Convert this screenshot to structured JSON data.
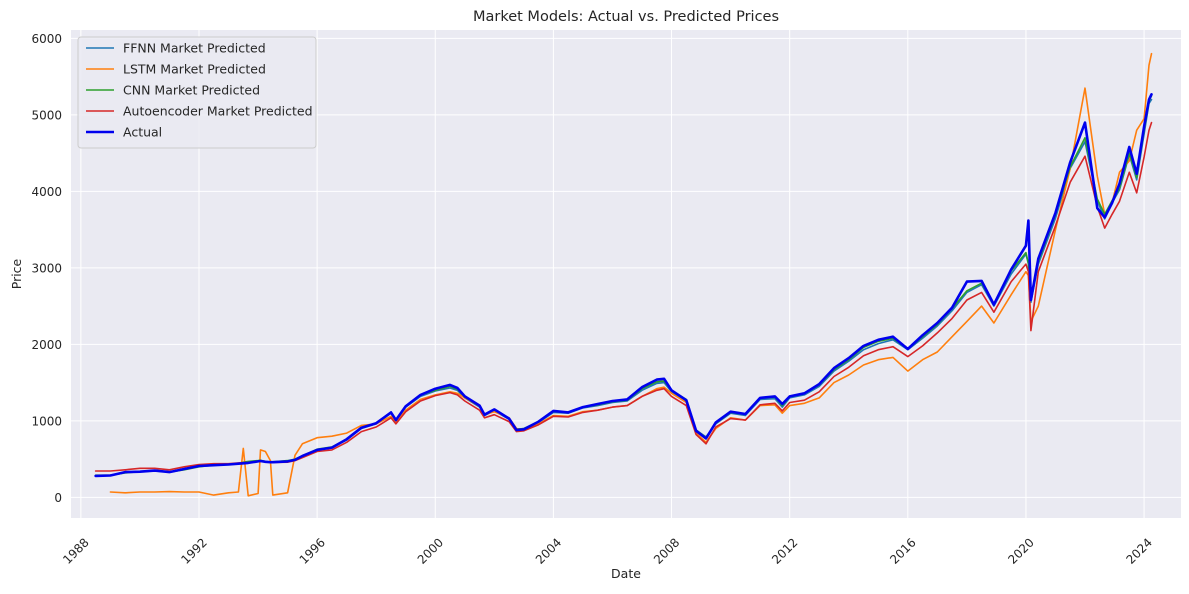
{
  "chart_data": {
    "type": "line",
    "title": "Market Models: Actual vs. Predicted Prices",
    "xlabel": "Date",
    "ylabel": "Price",
    "xlim": [
      "1987-09",
      "2025-04"
    ],
    "ylim": [
      -270,
      6110
    ],
    "x_ticks": [
      "1988",
      "1992",
      "1996",
      "2000",
      "2004",
      "2008",
      "2012",
      "2016",
      "2020",
      "2024"
    ],
    "y_ticks": [
      0,
      1000,
      2000,
      3000,
      4000,
      5000,
      6000
    ],
    "grid": true,
    "legend_position": "top-left",
    "x": [
      "1988-07",
      "1989-01",
      "1989-07",
      "1990-01",
      "1990-07",
      "1991-01",
      "1991-07",
      "1992-01",
      "1992-07",
      "1993-01",
      "1993-05",
      "1993-07",
      "1993-09",
      "1994-01",
      "1994-02",
      "1994-04",
      "1994-06",
      "1994-07",
      "1995-01",
      "1995-04",
      "1995-07",
      "1996-01",
      "1996-07",
      "1997-01",
      "1997-07",
      "1998-01",
      "1998-07",
      "1998-09",
      "1999-01",
      "1999-07",
      "2000-01",
      "2000-07",
      "2000-10",
      "2001-01",
      "2001-07",
      "2001-09",
      "2002-01",
      "2002-07",
      "2002-10",
      "2003-01",
      "2003-07",
      "2004-01",
      "2004-07",
      "2005-01",
      "2005-07",
      "2006-01",
      "2006-07",
      "2007-01",
      "2007-07",
      "2007-10",
      "2008-01",
      "2008-07",
      "2008-11",
      "2009-03",
      "2009-07",
      "2010-01",
      "2010-07",
      "2011-01",
      "2011-07",
      "2011-10",
      "2012-01",
      "2012-07",
      "2013-01",
      "2013-07",
      "2014-01",
      "2014-07",
      "2015-01",
      "2015-07",
      "2016-01",
      "2016-07",
      "2017-01",
      "2017-07",
      "2018-01",
      "2018-07",
      "2018-12",
      "2019-07",
      "2020-01",
      "2020-02",
      "2020-03",
      "2020-06",
      "2021-01",
      "2021-07",
      "2022-01",
      "2022-06",
      "2022-09",
      "2022-12",
      "2023-03",
      "2023-07",
      "2023-10",
      "2024-01",
      "2024-03",
      "2024-04"
    ],
    "series": [
      {
        "name": "FFNN Market Predicted",
        "color": "#1f77b4",
        "width": 1.6,
        "values": [
          285,
          290,
          330,
          340,
          350,
          330,
          370,
          410,
          420,
          430,
          440,
          445,
          450,
          470,
          475,
          465,
          460,
          460,
          470,
          490,
          540,
          620,
          650,
          750,
          900,
          960,
          1100,
          1000,
          1180,
          1320,
          1390,
          1430,
          1400,
          1300,
          1180,
          1070,
          1130,
          1020,
          890,
          900,
          980,
          1110,
          1100,
          1170,
          1200,
          1240,
          1260,
          1400,
          1490,
          1500,
          1380,
          1260,
          880,
          790,
          960,
          1100,
          1070,
          1280,
          1290,
          1180,
          1300,
          1340,
          1450,
          1650,
          1780,
          1930,
          2010,
          2060,
          1930,
          2080,
          2240,
          2440,
          2680,
          2780,
          2500,
          2920,
          3180,
          3050,
          2550,
          3050,
          3650,
          4300,
          4650,
          3880,
          3640,
          3850,
          4020,
          4480,
          4150,
          4750,
          5150,
          5200
        ]
      },
      {
        "name": "LSTM Market Predicted",
        "color": "#ff7f0e",
        "width": 1.6,
        "values": [
          null,
          70,
          60,
          70,
          70,
          75,
          70,
          70,
          30,
          60,
          70,
          640,
          20,
          50,
          620,
          600,
          480,
          30,
          60,
          550,
          700,
          780,
          800,
          840,
          940,
          960,
          1060,
          980,
          1140,
          1280,
          1340,
          1380,
          1360,
          1300,
          1190,
          1080,
          1120,
          1040,
          900,
          880,
          960,
          1070,
          1060,
          1120,
          1140,
          1180,
          1200,
          1320,
          1420,
          1440,
          1360,
          1240,
          840,
          720,
          900,
          1040,
          1010,
          1200,
          1210,
          1100,
          1200,
          1230,
          1300,
          1500,
          1600,
          1730,
          1800,
          1830,
          1650,
          1800,
          1900,
          2100,
          2300,
          2500,
          2280,
          2650,
          2950,
          2900,
          2300,
          2500,
          3500,
          4300,
          5350,
          4200,
          3700,
          3850,
          4250,
          4400,
          4800,
          4950,
          5650,
          5800
        ]
      },
      {
        "name": "CNN Market Predicted",
        "color": "#2ca02c",
        "width": 1.6,
        "values": [
          290,
          290,
          320,
          335,
          345,
          330,
          360,
          400,
          420,
          430,
          440,
          460,
          470,
          480,
          485,
          470,
          460,
          465,
          480,
          500,
          545,
          630,
          660,
          760,
          910,
          970,
          1110,
          1010,
          1190,
          1340,
          1400,
          1450,
          1410,
          1310,
          1190,
          1080,
          1150,
          1030,
          890,
          900,
          990,
          1130,
          1110,
          1180,
          1210,
          1250,
          1270,
          1420,
          1510,
          1520,
          1400,
          1280,
          880,
          780,
          970,
          1110,
          1090,
          1300,
          1310,
          1200,
          1320,
          1360,
          1470,
          1670,
          1800,
          1960,
          2040,
          2080,
          1940,
          2100,
          2260,
          2470,
          2700,
          2800,
          2520,
          2960,
          3200,
          3060,
          2580,
          3080,
          3700,
          4320,
          4700,
          3900,
          3700,
          3880,
          4040,
          4500,
          4180,
          4800,
          5180,
          5250
        ]
      },
      {
        "name": "Autoencoder Market Predicted",
        "color": "#d62728",
        "width": 1.6,
        "values": [
          345,
          345,
          360,
          380,
          380,
          360,
          400,
          430,
          440,
          440,
          450,
          455,
          455,
          470,
          470,
          465,
          460,
          455,
          460,
          480,
          520,
          600,
          620,
          720,
          860,
          920,
          1040,
          960,
          1120,
          1260,
          1330,
          1370,
          1340,
          1260,
          1140,
          1040,
          1080,
          990,
          860,
          870,
          950,
          1060,
          1050,
          1110,
          1140,
          1180,
          1200,
          1320,
          1400,
          1420,
          1320,
          1200,
          820,
          700,
          920,
          1030,
          1010,
          1210,
          1230,
          1130,
          1240,
          1270,
          1380,
          1580,
          1700,
          1850,
          1930,
          1970,
          1840,
          1980,
          2150,
          2340,
          2580,
          2680,
          2420,
          2820,
          3050,
          2950,
          2180,
          2950,
          3550,
          4120,
          4460,
          3800,
          3520,
          3700,
          3870,
          4250,
          3980,
          4450,
          4800,
          4900
        ]
      },
      {
        "name": "Actual",
        "color": "#0000ee",
        "width": 2.6,
        "values": [
          280,
          285,
          330,
          335,
          350,
          330,
          370,
          410,
          420,
          430,
          440,
          445,
          450,
          470,
          475,
          465,
          460,
          460,
          470,
          490,
          540,
          620,
          650,
          760,
          910,
          970,
          1110,
          1010,
          1190,
          1340,
          1420,
          1470,
          1430,
          1320,
          1200,
          1080,
          1150,
          1030,
          880,
          890,
          990,
          1130,
          1110,
          1180,
          1220,
          1260,
          1280,
          1440,
          1540,
          1550,
          1400,
          1270,
          870,
          770,
          980,
          1120,
          1090,
          1300,
          1320,
          1220,
          1320,
          1360,
          1480,
          1690,
          1820,
          1980,
          2060,
          2100,
          1940,
          2120,
          2280,
          2480,
          2820,
          2830,
          2520,
          2980,
          3290,
          3620,
          2580,
          3120,
          3720,
          4380,
          4900,
          3780,
          3660,
          3850,
          4100,
          4580,
          4230,
          4850,
          5200,
          5270
        ]
      }
    ]
  }
}
